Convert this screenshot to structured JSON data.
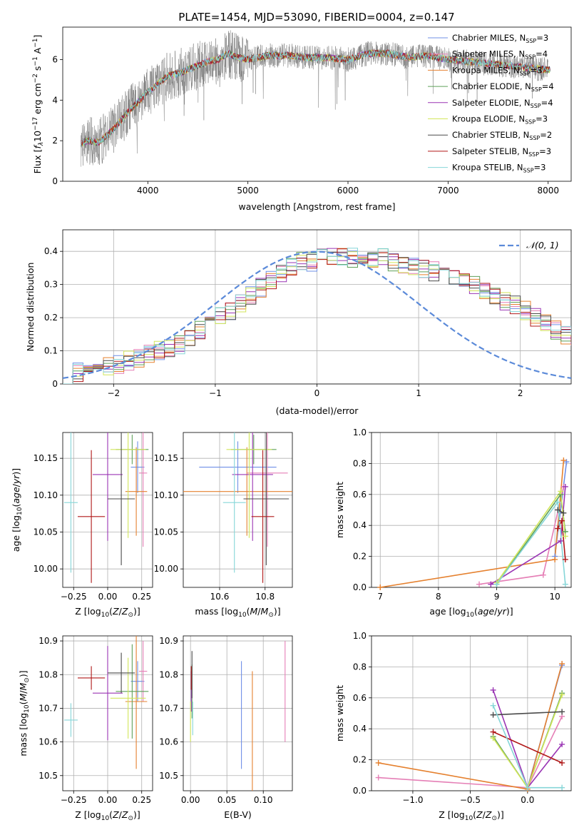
{
  "figure": {
    "title": "PLATE=1454, MJD=53090, FIBERID=0004, z=0.147"
  },
  "colors": {
    "grid": "#b0b0b0",
    "data": "#808080",
    "normal": "#5b8ad9",
    "Chabrier MILES": "#6f8fe6",
    "Salpeter MILES": "#e57fb6",
    "Kroupa MILES": "#e5812f",
    "Chabrier ELODIE": "#5fa05a",
    "Salpeter ELODIE": "#9a35b4",
    "Kroupa ELODIE": "#d2e65a",
    "Chabrier STELIB": "#4a4a4a",
    "Salpeter STELIB": "#b01818",
    "Kroupa STELIB": "#86d6d8"
  },
  "chart_data": [
    {
      "id": "spectrum",
      "type": "line",
      "title": "PLATE=1454, MJD=53090, FIBERID=0004, z=0.147",
      "xlabel": "wavelength [Angstrom, rest frame]",
      "ylabel_parts": [
        "Flux [",
        "f",
        "λ",
        "10",
        "−17",
        " erg cm",
        "−2",
        " s",
        "−1",
        " A",
        "−1",
        "]"
      ],
      "xlim": [
        3150,
        8230
      ],
      "ylim": [
        0,
        7.6
      ],
      "xticks": [
        4000,
        5000,
        6000,
        7000,
        8000
      ],
      "yticks": [
        0,
        2,
        4,
        6
      ],
      "grid": false,
      "legend_position": "right",
      "data_trace": {
        "name": "data",
        "x": [
          3330,
          3420,
          3500,
          3600,
          3700,
          3800,
          3900,
          4000,
          4100,
          4200,
          4300,
          4400,
          4500,
          4600,
          4700,
          4800,
          4900,
          5000,
          5200,
          5400,
          5600,
          5800,
          6000,
          6200,
          6400,
          6600,
          6800,
          7000,
          7200,
          7400,
          7600,
          7800,
          8000
        ],
        "y": [
          1.9,
          2.0,
          1.9,
          2.3,
          2.8,
          3.4,
          3.9,
          4.4,
          4.8,
          5.2,
          5.3,
          5.5,
          5.7,
          5.9,
          6.0,
          6.3,
          6.1,
          6.0,
          6.2,
          6.2,
          6.1,
          6.1,
          6.0,
          6.3,
          6.3,
          6.1,
          6.2,
          6.0,
          5.9,
          5.8,
          5.7,
          5.6,
          5.5
        ]
      },
      "model_trace": {
        "x": [
          3330,
          3420,
          3500,
          3600,
          3700,
          3800,
          3900,
          4000,
          4100,
          4200,
          4300,
          4400,
          4500,
          4600,
          4700,
          4800,
          4900,
          5000,
          5200,
          5400,
          5600,
          5800,
          6000,
          6200,
          6400,
          6600,
          6800,
          7000,
          7200,
          7400,
          7600,
          7800,
          8000
        ],
        "y": [
          1.9,
          2.0,
          1.9,
          2.3,
          2.8,
          3.4,
          3.9,
          4.4,
          4.8,
          5.2,
          5.3,
          5.5,
          5.7,
          5.9,
          6.0,
          6.3,
          6.1,
          6.0,
          6.2,
          6.2,
          6.1,
          6.1,
          6.0,
          6.3,
          6.3,
          6.1,
          6.2,
          6.0,
          5.9,
          5.8,
          5.7,
          5.6,
          5.5
        ]
      },
      "legend": [
        {
          "name": "Chabrier MILES",
          "label": "Chabrier MILES, N",
          "sub": "SSP",
          "suffix": "=3"
        },
        {
          "name": "Salpeter MILES",
          "label": "Salpeter MILES, N",
          "sub": "SSP",
          "suffix": "=4"
        },
        {
          "name": "Kroupa MILES",
          "label": "Kroupa MILES, N",
          "sub": "SSP",
          "suffix": "=3"
        },
        {
          "name": "Chabrier ELODIE",
          "label": "Chabrier ELODIE, N",
          "sub": "SSP",
          "suffix": "=4"
        },
        {
          "name": "Salpeter ELODIE",
          "label": "Salpeter ELODIE, N",
          "sub": "SSP",
          "suffix": "=4"
        },
        {
          "name": "Kroupa ELODIE",
          "label": "Kroupa ELODIE, N",
          "sub": "SSP",
          "suffix": "=3"
        },
        {
          "name": "Chabrier STELIB",
          "label": "Chabrier STELIB, N",
          "sub": "SSP",
          "suffix": "=2"
        },
        {
          "name": "Salpeter STELIB",
          "label": "Salpeter STELIB, N",
          "sub": "SSP",
          "suffix": "=3"
        },
        {
          "name": "Kroupa STELIB",
          "label": "Kroupa STELIB, N",
          "sub": "SSP",
          "suffix": "=3"
        }
      ]
    },
    {
      "id": "residuals",
      "type": "line",
      "xlabel": "(data-model)/error",
      "ylabel": "Normed distribution",
      "xlim": [
        -2.5,
        2.5
      ],
      "ylim": [
        0,
        0.465
      ],
      "xticks": [
        -2,
        -1,
        0,
        1,
        2
      ],
      "yticks": [
        0.0,
        0.1,
        0.2,
        0.3,
        0.4
      ],
      "grid": true,
      "legend_position": "top-right",
      "legend_label": "𝒩(0, 1)",
      "normal_curve": {
        "mean": 0,
        "sigma": 1
      },
      "histogram": {
        "bin_edges_min": -2.5,
        "bin_width": 0.1,
        "base": [
          0.025,
          0.035,
          0.04,
          0.045,
          0.055,
          0.06,
          0.07,
          0.08,
          0.09,
          0.1,
          0.11,
          0.12,
          0.14,
          0.16,
          0.18,
          0.2,
          0.22,
          0.24,
          0.27,
          0.29,
          0.31,
          0.33,
          0.35,
          0.37,
          0.37,
          0.38,
          0.38,
          0.385,
          0.38,
          0.37,
          0.37,
          0.38,
          0.37,
          0.36,
          0.35,
          0.35,
          0.34,
          0.33,
          0.32,
          0.31,
          0.3,
          0.28,
          0.26,
          0.25,
          0.24,
          0.22,
          0.2,
          0.18,
          0.16,
          0.15,
          0.14,
          0.13,
          0.12,
          0.11,
          0.1,
          0.09,
          0.08,
          0.07,
          0.06,
          0.05
        ]
      }
    },
    {
      "id": "age_vs_Z",
      "type": "scatter",
      "xlabel": "Z [log10(Z/Z⊙)]",
      "ylabel": "age  [log10(age/yr)]",
      "xlim": [
        -0.33,
        0.33
      ],
      "ylim": [
        9.975,
        10.185
      ],
      "xticks": [
        -0.25,
        0.0,
        0.25
      ],
      "xticklabels": [
        "−0.25",
        "0.00",
        "0.25"
      ],
      "yticks": [
        10.0,
        10.05,
        10.1,
        10.15
      ],
      "yticklabels": [
        "10.00",
        "10.05",
        "10.10",
        "10.15"
      ],
      "grid": true,
      "errorbars": [
        {
          "series": "Chabrier MILES",
          "x": 0.22,
          "xerr": 0.05,
          "y": 10.138,
          "yerr": 0.035
        },
        {
          "series": "Salpeter MILES",
          "x": 0.26,
          "xerr": 0.03,
          "y": 10.13,
          "yerr": 0.1
        },
        {
          "series": "Kroupa MILES",
          "x": 0.21,
          "xerr": 0.08,
          "y": 10.105,
          "yerr": 0.06
        },
        {
          "series": "Chabrier ELODIE",
          "x": 0.18,
          "xerr": 0.12,
          "y": 10.162,
          "yerr": 0.02
        },
        {
          "series": "Salpeter ELODIE",
          "x": 0.0,
          "xerr": 0.11,
          "y": 10.128,
          "yerr": 0.09
        },
        {
          "series": "Kroupa ELODIE",
          "x": 0.15,
          "xerr": 0.13,
          "y": 10.162,
          "yerr": 0.12
        },
        {
          "series": "Chabrier STELIB",
          "x": 0.1,
          "xerr": 0.1,
          "y": 10.095,
          "yerr": 0.09
        },
        {
          "series": "Salpeter STELIB",
          "x": -0.12,
          "xerr": 0.1,
          "y": 10.071,
          "yerr": 0.09
        },
        {
          "series": "Kroupa STELIB",
          "x": -0.27,
          "xerr": 0.05,
          "y": 10.09,
          "yerr": 0.095
        }
      ]
    },
    {
      "id": "age_vs_mass",
      "type": "scatter",
      "xlabel": "mass [log10(M/M⊙)]",
      "xlim": [
        10.44,
        10.92
      ],
      "ylim": [
        9.975,
        10.185
      ],
      "xticks": [
        10.6,
        10.8
      ],
      "xticklabels": [
        "10.6",
        "10.8"
      ],
      "yticks": [
        10.0,
        10.05,
        10.1,
        10.15
      ],
      "yticklabels": [
        "10.00",
        "10.05",
        "10.10",
        "10.15"
      ],
      "grid": true,
      "errorbars": [
        {
          "series": "Chabrier MILES",
          "x": 10.68,
          "xerr": 0.17,
          "y": 10.138,
          "yerr": 0.035
        },
        {
          "series": "Salpeter MILES",
          "x": 10.81,
          "xerr": 0.09,
          "y": 10.13,
          "yerr": 0.1
        },
        {
          "series": "Kroupa MILES",
          "x": 10.72,
          "xerr": 0.28,
          "y": 10.105,
          "yerr": 0.06
        },
        {
          "series": "Chabrier ELODIE",
          "x": 10.75,
          "xerr": 0.1,
          "y": 10.162,
          "yerr": 0.02
        },
        {
          "series": "Salpeter ELODIE",
          "x": 10.745,
          "xerr": 0.09,
          "y": 10.128,
          "yerr": 0.09
        },
        {
          "series": "Kroupa ELODIE",
          "x": 10.73,
          "xerr": 0.1,
          "y": 10.162,
          "yerr": 0.12
        },
        {
          "series": "Chabrier STELIB",
          "x": 10.805,
          "xerr": 0.1,
          "y": 10.095,
          "yerr": 0.09
        },
        {
          "series": "Salpeter STELIB",
          "x": 10.79,
          "xerr": 0.05,
          "y": 10.071,
          "yerr": 0.09
        },
        {
          "series": "Kroupa STELIB",
          "x": 10.665,
          "xerr": 0.05,
          "y": 10.09,
          "yerr": 0.095
        }
      ]
    },
    {
      "id": "mass_weight_vs_age",
      "type": "line",
      "xlabel": "age  [log10(age/yr)]",
      "ylabel": "mass weight",
      "xlim": [
        6.85,
        10.28
      ],
      "ylim": [
        0,
        1.0
      ],
      "xticks": [
        7,
        8,
        9,
        10
      ],
      "xticklabels": [
        "7",
        "8",
        "9",
        "10"
      ],
      "yticks": [
        0.0,
        0.2,
        0.4,
        0.6,
        0.8,
        1.0
      ],
      "yticklabels": [
        "0.0",
        "0.2",
        "0.4",
        "0.6",
        "0.8",
        "1.0"
      ],
      "grid": true,
      "series": [
        {
          "name": "Chabrier MILES",
          "x": [
            10.0,
            10.2
          ],
          "y": [
            0.2,
            0.81
          ]
        },
        {
          "name": "Salpeter MILES",
          "x": [
            8.7,
            9.8,
            10.15
          ],
          "y": [
            0.02,
            0.08,
            0.65
          ]
        },
        {
          "name": "Kroupa MILES",
          "x": [
            7.0,
            10.0,
            10.15
          ],
          "y": [
            0.0,
            0.18,
            0.82
          ]
        },
        {
          "name": "Chabrier ELODIE",
          "x": [
            9.0,
            10.1,
            10.18
          ],
          "y": [
            0.02,
            0.6,
            0.36
          ]
        },
        {
          "name": "Salpeter ELODIE",
          "x": [
            8.9,
            10.1,
            10.18
          ],
          "y": [
            0.02,
            0.3,
            0.65
          ]
        },
        {
          "name": "Kroupa ELODIE",
          "x": [
            9.0,
            10.1,
            10.18
          ],
          "y": [
            0.03,
            0.62,
            0.33
          ]
        },
        {
          "name": "Chabrier STELIB",
          "x": [
            10.05,
            10.15
          ],
          "y": [
            0.5,
            0.48
          ]
        },
        {
          "name": "Salpeter STELIB",
          "x": [
            10.05,
            10.12,
            10.18
          ],
          "y": [
            0.38,
            0.43,
            0.18
          ]
        },
        {
          "name": "Kroupa STELIB",
          "x": [
            9.0,
            10.05,
            10.18
          ],
          "y": [
            0.02,
            0.55,
            0.02
          ]
        }
      ]
    },
    {
      "id": "mass_vs_Z",
      "type": "scatter",
      "xlabel": "Z [log10(Z/Z⊙)]",
      "ylabel": "mass [log10(M/M⊙)]",
      "xlim": [
        -0.33,
        0.33
      ],
      "ylim": [
        10.455,
        10.915
      ],
      "xticks": [
        -0.25,
        0.0,
        0.25
      ],
      "xticklabels": [
        "−0.25",
        "0.00",
        "0.25"
      ],
      "yticks": [
        10.5,
        10.6,
        10.7,
        10.8,
        10.9
      ],
      "yticklabels": [
        "10.5",
        "10.6",
        "10.7",
        "10.8",
        "10.9"
      ],
      "grid": true,
      "errorbars": [
        {
          "series": "Chabrier MILES",
          "x": 0.22,
          "xerr": 0.05,
          "y": 10.78,
          "yerr": 0.06
        },
        {
          "series": "Salpeter MILES",
          "x": 0.26,
          "xerr": 0.03,
          "y": 10.81,
          "yerr": 0.09
        },
        {
          "series": "Kroupa MILES",
          "x": 0.21,
          "xerr": 0.08,
          "y": 10.72,
          "yerr": 0.2
        },
        {
          "series": "Chabrier ELODIE",
          "x": 0.18,
          "xerr": 0.12,
          "y": 10.75,
          "yerr": 0.14
        },
        {
          "series": "Salpeter ELODIE",
          "x": 0.0,
          "xerr": 0.11,
          "y": 10.745,
          "yerr": 0.14
        },
        {
          "series": "Kroupa ELODIE",
          "x": 0.15,
          "xerr": 0.13,
          "y": 10.73,
          "yerr": 0.12
        },
        {
          "series": "Chabrier STELIB",
          "x": 0.1,
          "xerr": 0.1,
          "y": 10.805,
          "yerr": 0.06
        },
        {
          "series": "Salpeter STELIB",
          "x": -0.12,
          "xerr": 0.1,
          "y": 10.79,
          "yerr": 0.035
        },
        {
          "series": "Kroupa STELIB",
          "x": -0.27,
          "xerr": 0.05,
          "y": 10.665,
          "yerr": 0.05
        }
      ]
    },
    {
      "id": "mass_vs_EBV",
      "type": "scatter",
      "xlabel": "E(B-V)",
      "xlim": [
        -0.01,
        0.14
      ],
      "ylim": [
        10.455,
        10.915
      ],
      "xticks": [
        0.0,
        0.05,
        0.1
      ],
      "xticklabels": [
        "0.00",
        "0.05",
        "0.10"
      ],
      "yticks": [
        10.5,
        10.6,
        10.7,
        10.8,
        10.9
      ],
      "yticklabels": [
        "10.5",
        "10.6",
        "10.7",
        "10.8",
        "10.9"
      ],
      "grid": true,
      "errorbars": [
        {
          "series": "Chabrier MILES",
          "x": 0.07,
          "y": 10.68,
          "yerr": 0.16
        },
        {
          "series": "Salpeter MILES",
          "x": 0.13,
          "y": 10.75,
          "yerr": 0.15
        },
        {
          "series": "Kroupa MILES",
          "x": 0.085,
          "y": 10.63,
          "yerr": 0.18
        },
        {
          "series": "Chabrier ELODIE",
          "x": 0.002,
          "y": 10.75,
          "yerr": 0.08
        },
        {
          "series": "Salpeter ELODIE",
          "x": 0.001,
          "y": 10.75,
          "yerr": 0.06
        },
        {
          "series": "Kroupa ELODIE",
          "x": 0.0,
          "y": 10.66,
          "yerr": 0.06
        },
        {
          "series": "Chabrier STELIB",
          "x": 0.002,
          "y": 10.8,
          "yerr": 0.07
        },
        {
          "series": "Salpeter STELIB",
          "x": 0.001,
          "y": 10.79,
          "yerr": 0.035
        },
        {
          "series": "Kroupa STELIB",
          "x": 0.003,
          "y": 10.67,
          "yerr": 0.05
        }
      ]
    },
    {
      "id": "mass_weight_vs_Z",
      "type": "line",
      "xlabel": "Z [log10(Z/Z⊙)]",
      "ylabel": "mass weight",
      "xlim": [
        -1.36,
        0.38
      ],
      "ylim": [
        0,
        1.0
      ],
      "xticks": [
        -1.0,
        -0.5,
        0.0
      ],
      "xticklabels": [
        "−1.0",
        "−0.5",
        "0.0"
      ],
      "yticks": [
        0.0,
        0.2,
        0.4,
        0.6,
        0.8,
        1.0
      ],
      "yticklabels": [
        "0.0",
        "0.2",
        "0.4",
        "0.6",
        "0.8",
        "1.0"
      ],
      "grid": true,
      "series": [
        {
          "name": "Chabrier MILES",
          "x": [
            0.0,
            0.3
          ],
          "y": [
            0.02,
            0.81
          ]
        },
        {
          "name": "Salpeter MILES",
          "x": [
            -1.3,
            0.0,
            0.3
          ],
          "y": [
            0.085,
            0.02,
            0.48
          ]
        },
        {
          "name": "Kroupa MILES",
          "x": [
            -1.3,
            0.0,
            0.3
          ],
          "y": [
            0.18,
            0.01,
            0.82
          ]
        },
        {
          "name": "Chabrier ELODIE",
          "x": [
            -0.3,
            0.0,
            0.3
          ],
          "y": [
            0.35,
            0.02,
            0.63
          ]
        },
        {
          "name": "Salpeter ELODIE",
          "x": [
            -0.3,
            0.0,
            0.3
          ],
          "y": [
            0.65,
            0.02,
            0.3
          ]
        },
        {
          "name": "Kroupa ELODIE",
          "x": [
            -0.3,
            0.0,
            0.3
          ],
          "y": [
            0.34,
            0.02,
            0.62
          ]
        },
        {
          "name": "Chabrier STELIB",
          "x": [
            -0.3,
            0.3
          ],
          "y": [
            0.49,
            0.51
          ]
        },
        {
          "name": "Salpeter STELIB",
          "x": [
            -0.3,
            0.3
          ],
          "y": [
            0.38,
            0.18
          ]
        },
        {
          "name": "Kroupa STELIB",
          "x": [
            -0.3,
            0.0,
            0.3
          ],
          "y": [
            0.55,
            0.02,
            0.02
          ]
        }
      ]
    }
  ]
}
